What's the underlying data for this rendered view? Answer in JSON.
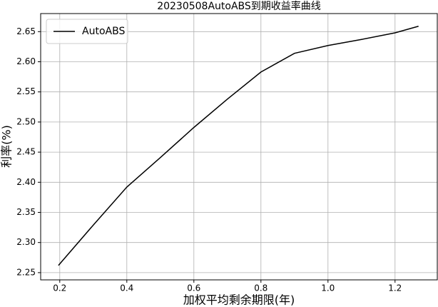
{
  "chart_data": {
    "type": "line",
    "title": "20230508AutoABS到期收益率曲线",
    "x_label": "加权平均剩余期限(年)",
    "y_label": "利率(%)",
    "x": [
      0.196,
      0.3,
      0.4,
      0.5,
      0.6,
      0.7,
      0.8,
      0.9,
      1.0,
      1.1,
      1.2,
      1.27
    ],
    "series": [
      {
        "name": "AutoABS",
        "color": "#000000",
        "values": [
          2.262,
          2.329,
          2.392,
          2.441,
          2.491,
          2.538,
          2.583,
          2.614,
          2.627,
          2.637,
          2.648,
          2.659
        ]
      }
    ],
    "xlim": [
      0.143,
      1.326
    ],
    "xticks": [
      0.2,
      0.4,
      0.6,
      0.8,
      {
        "value": 1,
        "label": "1.0"
      },
      1.2
    ],
    "ylim": [
      2.238,
      2.68
    ],
    "yticks": [
      2.25,
      {
        "value": 2.3,
        "label": "2.30"
      },
      2.35,
      {
        "value": 2.4,
        "label": "2.40"
      },
      2.45,
      {
        "value": 2.5,
        "label": "2.50"
      },
      2.55,
      {
        "value": 2.6,
        "label": "2.60"
      },
      2.65
    ],
    "grid": true,
    "legend": "upper-left"
  }
}
